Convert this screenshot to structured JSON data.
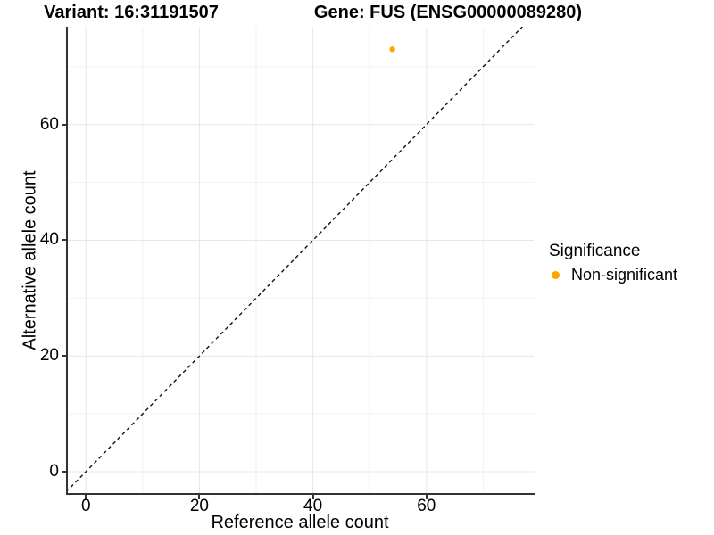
{
  "titles": {
    "left": "Variant: 16:31191507",
    "right": "Gene: FUS (ENSG00000089280)"
  },
  "legend": {
    "title": "Significance",
    "items": [
      {
        "label": "Non-significant",
        "color": "#FFA500"
      }
    ]
  },
  "chart_data": {
    "type": "scatter",
    "title": "Variant: 16:31191507   Gene: FUS (ENSG00000089280)",
    "xlabel": "Reference allele count",
    "ylabel": "Alternative allele count",
    "xlim": [
      -3.5,
      78.9
    ],
    "ylim": [
      -3.7,
      76.9
    ],
    "x_breaks": [
      0,
      20,
      40,
      60
    ],
    "y_breaks": [
      0,
      20,
      40,
      60
    ],
    "x_minor_breaks": [
      10,
      30,
      50,
      70
    ],
    "y_minor_breaks": [
      10,
      30,
      50,
      70
    ],
    "grid": true,
    "legend_position": "right",
    "identity_line": {
      "style": "dashed",
      "color": "#111111",
      "slope": 1,
      "intercept": 0
    },
    "series": [
      {
        "name": "Non-significant",
        "color": "#FFA500",
        "points": [
          {
            "x": 54,
            "y": 73
          }
        ]
      }
    ],
    "style": {
      "major_grid_color": "#E7E7E7",
      "minor_grid_color": "#F2F2F2",
      "axis_line_color": "#333333",
      "point_radius": 3.2,
      "background": "#FFFFFF"
    }
  }
}
